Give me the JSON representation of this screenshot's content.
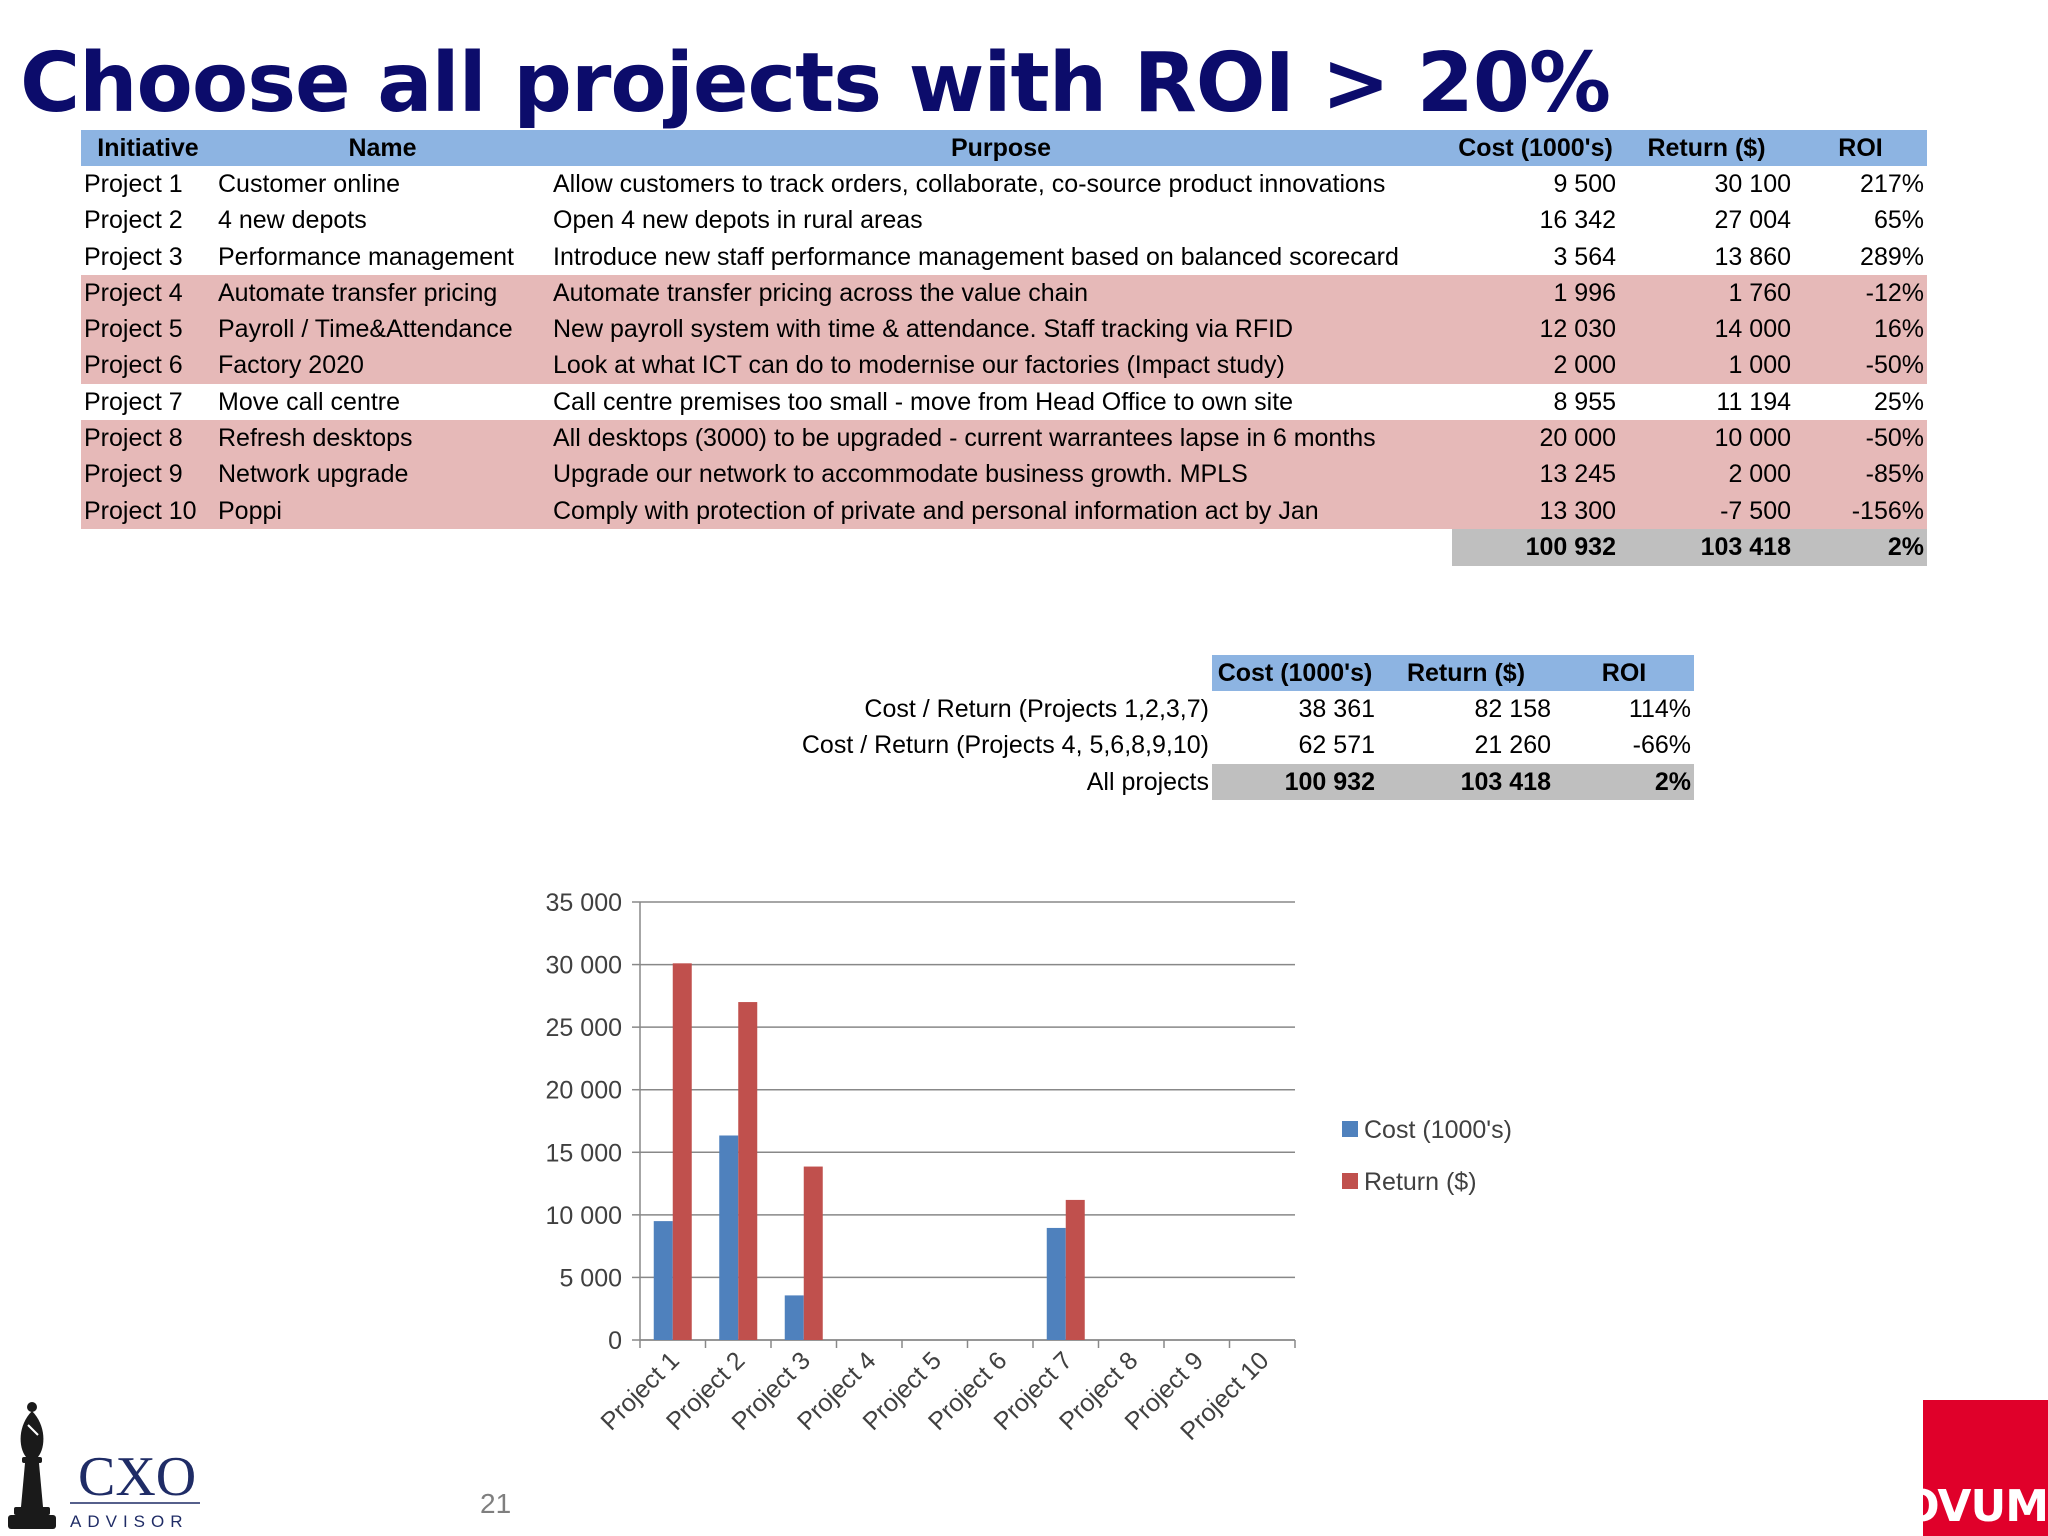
{
  "title": "Choose all projects with ROI > 20%",
  "table": {
    "headers": [
      "Initiative",
      "Name",
      "Purpose",
      "Cost (1000's)",
      "Return ($)",
      "ROI"
    ],
    "rows": [
      {
        "initiative": "Project 1",
        "name": "Customer online",
        "purpose": "Allow customers to track orders, collaborate, co-source product innovations",
        "cost": "9 500",
        "return": "30 100",
        "roi": "217%",
        "highlight": false
      },
      {
        "initiative": "Project 2",
        "name": "4 new depots",
        "purpose": "Open 4 new depots in rural areas",
        "cost": "16 342",
        "return": "27 004",
        "roi": "65%",
        "highlight": false
      },
      {
        "initiative": "Project 3",
        "name": "Performance management",
        "purpose": "Introduce new staff performance management based on balanced scorecard",
        "cost": "3 564",
        "return": "13 860",
        "roi": "289%",
        "highlight": false
      },
      {
        "initiative": "Project 4",
        "name": "Automate transfer pricing",
        "purpose": "Automate transfer pricing across the value chain",
        "cost": "1 996",
        "return": "1 760",
        "roi": "-12%",
        "highlight": true
      },
      {
        "initiative": "Project 5",
        "name": "Payroll / Time&Attendance",
        "purpose": "New payroll system with time & attendance. Staff tracking via RFID",
        "cost": "12 030",
        "return": "14 000",
        "roi": "16%",
        "highlight": true
      },
      {
        "initiative": "Project 6",
        "name": "Factory 2020",
        "purpose": "Look at what ICT can do to modernise our factories (Impact study)",
        "cost": "2 000",
        "return": "1 000",
        "roi": "-50%",
        "highlight": true
      },
      {
        "initiative": "Project 7",
        "name": "Move call centre",
        "purpose": "Call centre premises too small - move from Head Office to own site",
        "cost": "8 955",
        "return": "11 194",
        "roi": "25%",
        "highlight": false
      },
      {
        "initiative": "Project 8",
        "name": "Refresh desktops",
        "purpose": "All desktops (3000) to be upgraded - current warrantees lapse in 6 months",
        "cost": "20 000",
        "return": "10 000",
        "roi": "-50%",
        "highlight": true
      },
      {
        "initiative": "Project 9",
        "name": "Network upgrade",
        "purpose": "Upgrade our network to accommodate business growth. MPLS",
        "cost": "13 245",
        "return": "2 000",
        "roi": "-85%",
        "highlight": true
      },
      {
        "initiative": "Project 10",
        "name": "Poppi",
        "purpose": "Comply with protection of private and personal information act by Jan",
        "cost": "13 300",
        "return": "-7 500",
        "roi": "-156%",
        "highlight": true
      }
    ],
    "total": {
      "cost": "100 932",
      "return": "103 418",
      "roi": "2%"
    }
  },
  "summary": {
    "headers": [
      "Cost (1000's)",
      "Return ($)",
      "ROI"
    ],
    "rows": [
      {
        "label": "Cost / Return (Projects 1,2,3,7)",
        "cost": "38 361",
        "return": "82 158",
        "roi": "114%"
      },
      {
        "label": "Cost / Return (Projects 4, 5,6,8,9,10)",
        "cost": "62 571",
        "return": "21 260",
        "roi": "-66%"
      }
    ],
    "total": {
      "label": "All projects",
      "cost": "100 932",
      "return": "103 418",
      "roi": "2%"
    }
  },
  "chart_data": {
    "type": "bar",
    "categories": [
      "Project 1",
      "Project 2",
      "Project 3",
      "Project 4",
      "Project 5",
      "Project 6",
      "Project 7",
      "Project 8",
      "Project 9",
      "Project 10"
    ],
    "series": [
      {
        "name": "Cost (1000's)",
        "color": "#4f81bd",
        "values": [
          9500,
          16342,
          3564,
          null,
          null,
          null,
          8955,
          null,
          null,
          null
        ]
      },
      {
        "name": "Return ($)",
        "color": "#c0504d",
        "values": [
          30100,
          27004,
          13860,
          null,
          null,
          null,
          11194,
          null,
          null,
          null
        ]
      }
    ],
    "ylim": [
      0,
      35000
    ],
    "yticks": [
      0,
      5000,
      10000,
      15000,
      20000,
      25000,
      30000,
      35000
    ],
    "ytick_labels": [
      "0",
      "5 000",
      "10 000",
      "15 000",
      "20 000",
      "25 000",
      "30 000",
      "35 000"
    ],
    "grid": true,
    "legend": "right"
  },
  "footer": {
    "page_number": "21",
    "cxo_logo_text": "CXO",
    "cxo_logo_subtext": "ADVISOR",
    "ovum_logo_text": "OVUM"
  }
}
